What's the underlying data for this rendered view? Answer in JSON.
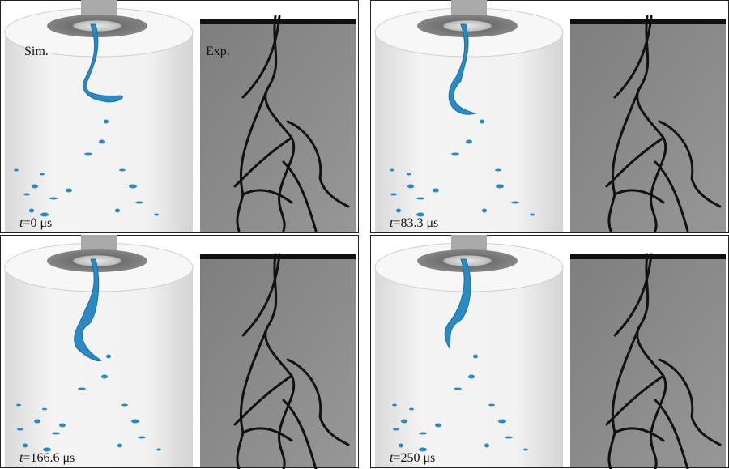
{
  "figure": {
    "sim_label": "Sim.",
    "exp_label": "Exp.",
    "panels": [
      {
        "symbol": "t",
        "time": "=0 μs"
      },
      {
        "symbol": "t",
        "time": "=83.3 μs"
      },
      {
        "symbol": "t",
        "time": "=166.6 μs"
      },
      {
        "symbol": "t",
        "time": "=250 μs"
      }
    ]
  }
}
